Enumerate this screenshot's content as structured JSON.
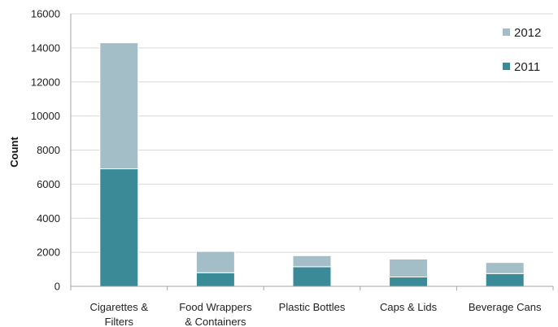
{
  "chart_data": {
    "type": "bar",
    "stacked": true,
    "title": "",
    "xlabel": "",
    "ylabel": "Count",
    "ylim": [
      0,
      16000
    ],
    "yticks": [
      0,
      2000,
      4000,
      6000,
      8000,
      10000,
      12000,
      14000,
      16000
    ],
    "grid": true,
    "legend_position": "top-right",
    "categories": [
      [
        "Cigarettes &",
        "Filters"
      ],
      [
        "Food Wrappers",
        "& Containers"
      ],
      [
        "Plastic Bottles"
      ],
      [
        "Caps & Lids"
      ],
      [
        "Beverage Cans"
      ]
    ],
    "series": [
      {
        "name": "2011",
        "color": "#3a8a98",
        "values": [
          6900,
          800,
          1150,
          550,
          750
        ]
      },
      {
        "name": "2012",
        "color": "#a3bec6",
        "values": [
          7400,
          1250,
          650,
          1050,
          650
        ]
      }
    ],
    "legend_order": [
      "2012",
      "2011"
    ]
  }
}
